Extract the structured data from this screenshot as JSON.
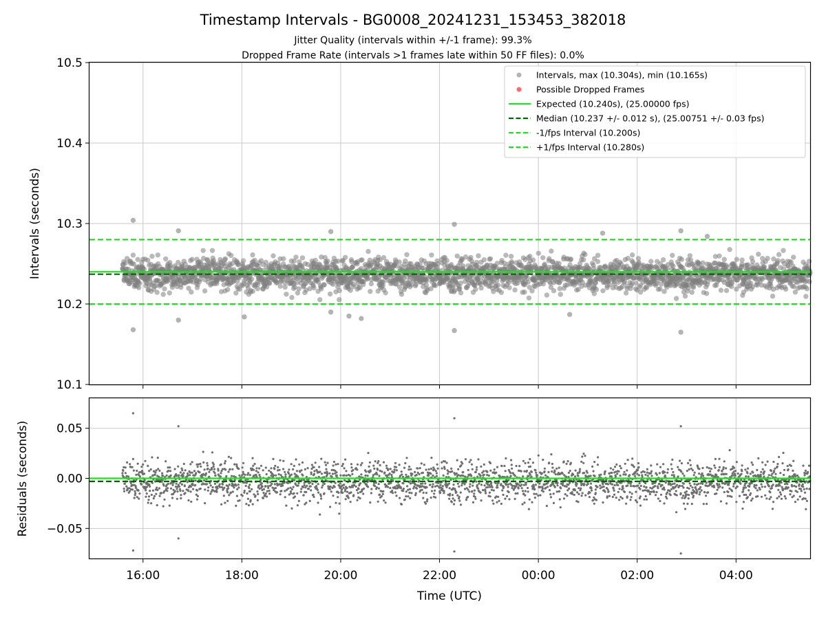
{
  "chart_data": {
    "type": "scatter",
    "title": "Timestamp Intervals - BG0008_20241231_153453_382018",
    "subtitles": [
      "Jitter Quality (intervals within +/-1 frame): 99.3%",
      "Dropped Frame Rate (intervals >1 frames late within 50 FF files): 0.0%"
    ],
    "xlabel": "Time (UTC)",
    "x_axis_type": "time",
    "x_range": [
      "2024-12-31T14:55:00Z",
      "2025-01-01T05:30:00Z"
    ],
    "x_ticks": [
      "16:00",
      "18:00",
      "20:00",
      "22:00",
      "00:00",
      "02:00",
      "04:00"
    ],
    "data_time_range": [
      "2024-12-31T15:35:00Z",
      "2025-01-01T05:30:00Z"
    ],
    "grid": true,
    "panels": [
      {
        "name": "intervals",
        "ylabel": "Intervals (seconds)",
        "ylim": [
          10.1,
          10.5
        ],
        "y_ticks": [
          "10.1",
          "10.2",
          "10.3",
          "10.4",
          "10.5"
        ],
        "legend_position": "top-right",
        "series": [
          {
            "name": "Intervals, max (10.304s), min (10.165s)",
            "kind": "scatter",
            "color": "#808080",
            "center": 10.237,
            "std": 0.012,
            "extremes": [
              {
                "t": "2024-12-31T15:48:00Z",
                "y": 10.304
              },
              {
                "t": "2024-12-31T15:48:00Z",
                "y": 10.168
              },
              {
                "t": "2024-12-31T16:43:00Z",
                "y": 10.291
              },
              {
                "t": "2024-12-31T16:43:00Z",
                "y": 10.18
              },
              {
                "t": "2024-12-31T18:03:00Z",
                "y": 10.184
              },
              {
                "t": "2024-12-31T19:48:00Z",
                "y": 10.29
              },
              {
                "t": "2024-12-31T19:48:00Z",
                "y": 10.19
              },
              {
                "t": "2024-12-31T20:10:00Z",
                "y": 10.185
              },
              {
                "t": "2024-12-31T20:25:00Z",
                "y": 10.182
              },
              {
                "t": "2024-12-31T22:18:00Z",
                "y": 10.299
              },
              {
                "t": "2024-12-31T22:18:00Z",
                "y": 10.167
              },
              {
                "t": "2025-01-01T00:38:00Z",
                "y": 10.187
              },
              {
                "t": "2025-01-01T01:18:00Z",
                "y": 10.288
              },
              {
                "t": "2025-01-01T02:53:00Z",
                "y": 10.291
              },
              {
                "t": "2025-01-01T02:53:00Z",
                "y": 10.165
              },
              {
                "t": "2025-01-01T03:25:00Z",
                "y": 10.284
              }
            ]
          },
          {
            "name": "Possible Dropped Frames",
            "kind": "scatter",
            "color": "#ff5050",
            "values": []
          },
          {
            "name": "Expected (10.240s), (25.00000 fps)",
            "kind": "hline",
            "y": 10.24,
            "style": "solid",
            "color": "#22dd22"
          },
          {
            "name": "Median (10.237 +/- 0.012 s), (25.00751 +/- 0.03 fps)",
            "kind": "hline",
            "y": 10.237,
            "style": "dashed",
            "color": "#006400"
          },
          {
            "name": "-1/fps Interval (10.200s)",
            "kind": "hline",
            "y": 10.2,
            "style": "dashed",
            "color": "#22dd22"
          },
          {
            "name": "+1/fps Interval (10.280s)",
            "kind": "hline",
            "y": 10.28,
            "style": "dashed",
            "color": "#22dd22"
          }
        ]
      },
      {
        "name": "residuals",
        "ylabel": "Residuals (seconds)",
        "ylim": [
          -0.08,
          0.08
        ],
        "y_ticks": [
          "−0.05",
          "0.00",
          "0.05"
        ],
        "series": [
          {
            "kind": "scatter",
            "color": "#6e6e6e",
            "center": -0.003,
            "std": 0.012,
            "extremes": [
              {
                "t": "2024-12-31T15:48:00Z",
                "y": 0.065
              },
              {
                "t": "2024-12-31T15:48:00Z",
                "y": -0.072
              },
              {
                "t": "2024-12-31T16:43:00Z",
                "y": 0.052
              },
              {
                "t": "2024-12-31T16:43:00Z",
                "y": -0.06
              },
              {
                "t": "2024-12-31T22:18:00Z",
                "y": 0.06
              },
              {
                "t": "2024-12-31T22:18:00Z",
                "y": -0.073
              },
              {
                "t": "2025-01-01T02:53:00Z",
                "y": 0.052
              },
              {
                "t": "2025-01-01T02:53:00Z",
                "y": -0.075
              }
            ]
          },
          {
            "kind": "hline",
            "y": 0.0,
            "style": "solid",
            "color": "#22dd22"
          },
          {
            "kind": "hline",
            "y": -0.003,
            "style": "dashed",
            "color": "#006400"
          }
        ]
      }
    ]
  }
}
